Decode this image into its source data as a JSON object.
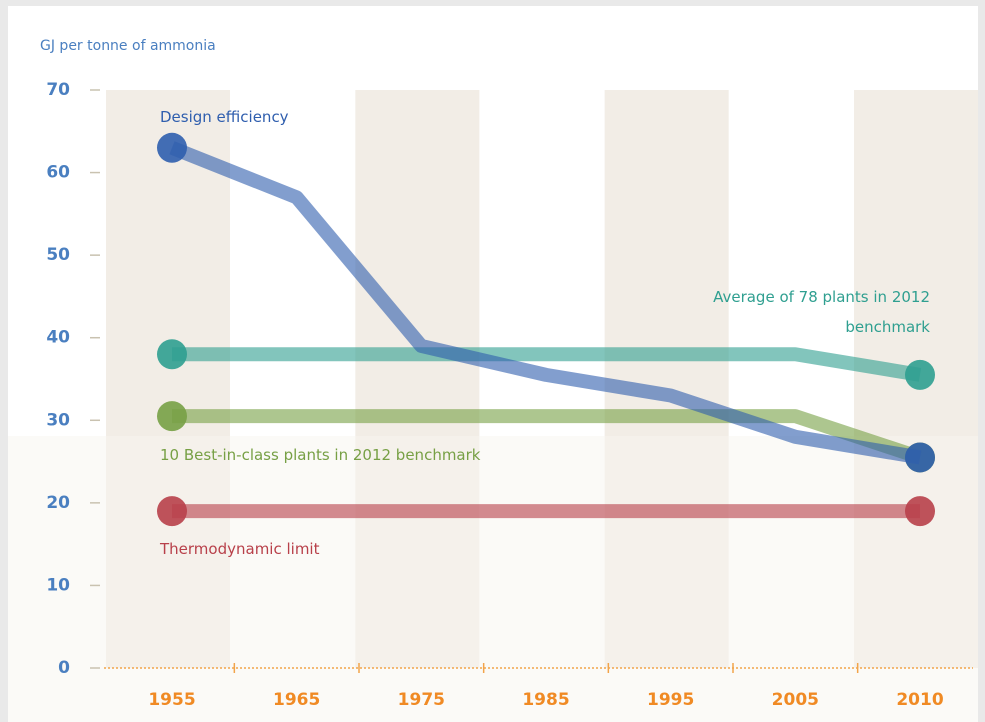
{
  "chart_data": {
    "type": "line",
    "y_axis_label": "GJ per tonne of ammonia",
    "categories": [
      "1955",
      "1965",
      "1975",
      "1985",
      "1995",
      "2005",
      "2010"
    ],
    "series": [
      {
        "name": "Design efficiency",
        "color": "#2f5eae",
        "values": [
          63,
          57,
          39,
          35.5,
          33,
          28,
          25.5
        ]
      },
      {
        "name": "Average of 78 plants in 2012 benchmark",
        "color": "#2f9f90",
        "values": [
          38,
          38,
          38,
          38,
          38,
          38,
          35.5
        ]
      },
      {
        "name": "10 Best-in-class plants in 2012 benchmark",
        "color": "#77a045",
        "values": [
          30.5,
          30.5,
          30.5,
          30.5,
          30.5,
          30.5,
          25.5
        ]
      },
      {
        "name": "Thermodynamic limit",
        "color": "#b8404a",
        "values": [
          19,
          19,
          19,
          19,
          19,
          19,
          19
        ]
      }
    ],
    "ylim": [
      0,
      70
    ],
    "yticks": [
      0,
      10,
      20,
      30,
      40,
      50,
      60,
      70
    ]
  }
}
